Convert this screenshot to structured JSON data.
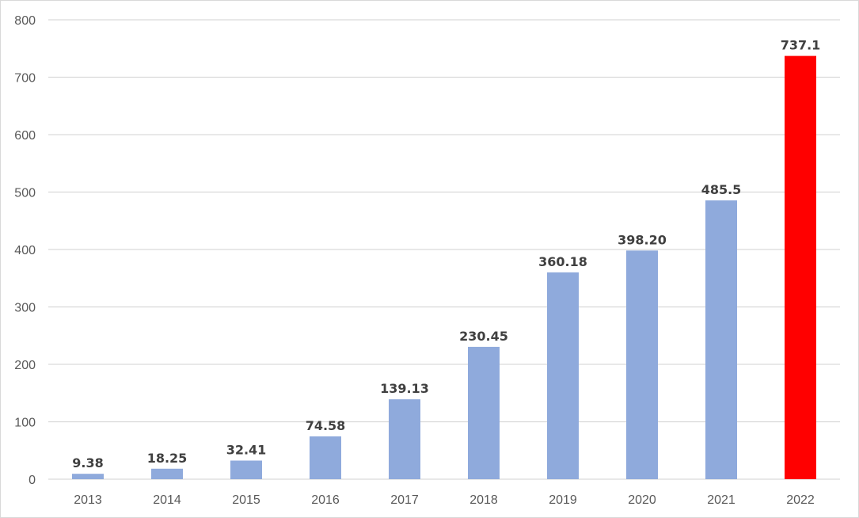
{
  "chart_data": {
    "type": "bar",
    "title": "",
    "xlabel": "",
    "ylabel": "",
    "categories": [
      "2013",
      "2014",
      "2015",
      "2016",
      "2017",
      "2018",
      "2019",
      "2020",
      "2021",
      "2022"
    ],
    "values": [
      9.38,
      18.25,
      32.41,
      74.58,
      139.13,
      230.45,
      360.18,
      398.2,
      485.5,
      737.1
    ],
    "data_labels": [
      "9.38",
      "18.25",
      "32.41",
      "74.58",
      "139.13",
      "230.45",
      "360.18",
      "398.20",
      "485.5",
      "737.1"
    ],
    "ylim": [
      0,
      800
    ],
    "yticks": [
      0,
      100,
      200,
      300,
      400,
      500,
      600,
      700,
      800
    ],
    "grid": true,
    "legend": "none",
    "colors": {
      "bar": "#8faadc",
      "highlight_bar": "#ff0000",
      "highlight_category": "2022",
      "gridline": "#d9d9d9",
      "axis_text": "#595959",
      "label_text": "#404040"
    }
  }
}
